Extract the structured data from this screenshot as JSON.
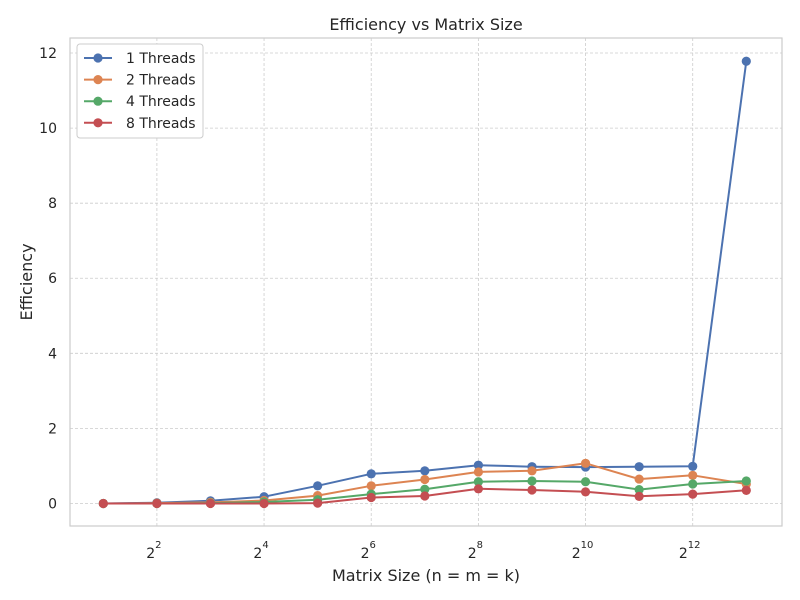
{
  "chart_data": {
    "type": "line",
    "title": "Efficiency vs Matrix Size",
    "xlabel": "Matrix Size (n = m = k)",
    "ylabel": "Efficiency",
    "x_scale": "log2",
    "x": [
      2,
      4,
      8,
      16,
      32,
      64,
      128,
      256,
      512,
      1024,
      2048,
      4096,
      8192
    ],
    "xlim": [
      1.3,
      13000
    ],
    "ylim": [
      -0.6,
      12.4
    ],
    "x_ticks": [
      {
        "value": 4,
        "base": "2",
        "exp": "2"
      },
      {
        "value": 16,
        "base": "2",
        "exp": "4"
      },
      {
        "value": 64,
        "base": "2",
        "exp": "6"
      },
      {
        "value": 256,
        "base": "2",
        "exp": "8"
      },
      {
        "value": 1024,
        "base": "2",
        "exp": "10"
      },
      {
        "value": 4096,
        "base": "2",
        "exp": "12"
      }
    ],
    "y_ticks": [
      0,
      2,
      4,
      6,
      8,
      10,
      12
    ],
    "grid": true,
    "legend_position": "top-left",
    "series": [
      {
        "name": "1 Threads",
        "color": "#4c72b0",
        "values": [
          0.0,
          0.02,
          0.07,
          0.18,
          0.47,
          0.79,
          0.87,
          1.02,
          0.98,
          0.97,
          0.98,
          0.99,
          11.78
        ]
      },
      {
        "name": "2 Threads",
        "color": "#dd8452",
        "values": [
          0.0,
          0.01,
          0.03,
          0.08,
          0.21,
          0.47,
          0.64,
          0.84,
          0.87,
          1.07,
          0.65,
          0.75,
          0.52
        ]
      },
      {
        "name": "4 Threads",
        "color": "#55a868",
        "values": [
          0.0,
          0.0,
          0.01,
          0.04,
          0.1,
          0.25,
          0.38,
          0.58,
          0.6,
          0.58,
          0.37,
          0.52,
          0.6
        ]
      },
      {
        "name": "8 Threads",
        "color": "#c44e52",
        "values": [
          0.0,
          0.0,
          0.0,
          0.0,
          0.01,
          0.16,
          0.2,
          0.39,
          0.36,
          0.31,
          0.19,
          0.25,
          0.35
        ]
      }
    ]
  }
}
